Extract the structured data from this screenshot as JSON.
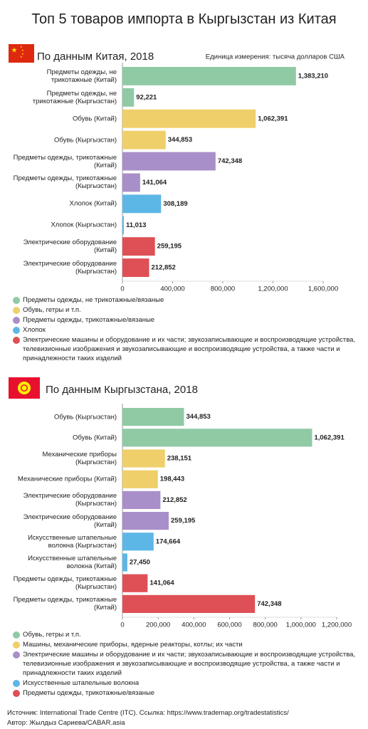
{
  "title": "Топ 5 товаров импорта в Кыргызстан из Китая",
  "source": "Источник: International Trade Centre (ITC). Ссылка: https://www.trademap.org/tradestatistics/",
  "author": "Автор: Жылдыз Сариева/CABAR.asia",
  "chart_data": [
    {
      "type": "bar",
      "orientation": "horizontal",
      "title": "По данным Китая, 2018",
      "subtitle": "Единица измерения: тысяча долларов США",
      "categories": [
        "Предметы одежды, не трикотажные (Китай)",
        "Предметы одежды, не трикотажные (Кыргызстан)",
        "Обувь (Китай)",
        "Обувь (Кыргызстан)",
        "Предметы одежды, трикотажные (Китай)",
        "Предметы одежды, трикотажные (Кыргызстан)",
        "Хлопок (Китай)",
        "Хлопок (Кыргызстан)",
        "Электрические оборудование (Китай)",
        "Электрические оборудование (Кыргызстан)"
      ],
      "values": [
        1383210,
        92221,
        1062391,
        344853,
        742348,
        141064,
        308189,
        11013,
        259195,
        212852
      ],
      "value_labels": [
        "1,383,210",
        "92,221",
        "1,062,391",
        "344,853",
        "742,348",
        "141,064",
        "308,189",
        "11,013",
        "259,195",
        "212,852"
      ],
      "colors": [
        "#8fcaa5",
        "#8fcaa5",
        "#efcf6a",
        "#efcf6a",
        "#a98fc9",
        "#a98fc9",
        "#5db7e6",
        "#5db7e6",
        "#de5055",
        "#de5055"
      ],
      "xlim": [
        0,
        1600000
      ],
      "xticks": [
        0,
        {
          "value": 400000,
          "label": "400,000"
        },
        {
          "value": 800000,
          "label": "800,000"
        },
        {
          "value": 1200000,
          "label": "1,200,000"
        },
        {
          "value": 1600000,
          "label": "1,600,000"
        }
      ],
      "legend": [
        {
          "name": "Предметы одежды, не трикотажные/вязаные",
          "color": "#8fcaa5"
        },
        {
          "name": "Обувь, гетры и т.п.",
          "color": "#efcf6a"
        },
        {
          "name": "Предметы одежды, трикотажные/вязаные",
          "color": "#a98fc9"
        },
        {
          "name": "Хлопок",
          "color": "#5db7e6"
        },
        {
          "name": "Электрические машины и оборудование и их части; звукозаписывающие и воспроизводящие устройства, телевизионные изображения и звукозаписывающие и воспроизводящие устройства, а также части и принадлежности таких изделий",
          "color": "#de5055"
        }
      ]
    },
    {
      "type": "bar",
      "orientation": "horizontal",
      "title": "По данным Кыргызстана, 2018",
      "categories": [
        "Обувь (Кыргызстан)",
        "Обувь (Китай)",
        "Механические приборы (Кыргызстан)",
        "Механические приборы (Китай)",
        "Электрические оборудование (Кыргызстан)",
        "Электрические оборудование (Китай)",
        "Искусственные штапельные волокна (Кыргызстан)",
        "Искусственные штапельные волокна (Китай)",
        "Предметы одежды, трикотажные (Кыргызстан)",
        "Предметы одежды, трикотажные (Китай)"
      ],
      "values": [
        344853,
        1062391,
        238151,
        198443,
        212852,
        259195,
        174664,
        27450,
        141064,
        742348
      ],
      "value_labels": [
        "344,853",
        "1,062,391",
        "238,151",
        "198,443",
        "212,852",
        "259,195",
        "174,664",
        "27,450",
        "141,064",
        "742,348"
      ],
      "colors": [
        "#8fcaa5",
        "#8fcaa5",
        "#efcf6a",
        "#efcf6a",
        "#a98fc9",
        "#a98fc9",
        "#5db7e6",
        "#5db7e6",
        "#de5055",
        "#de5055"
      ],
      "xlim": [
        0,
        1200000
      ],
      "xticks": [
        0,
        {
          "value": 200000,
          "label": "200,000"
        },
        {
          "value": 400000,
          "label": "400,000"
        },
        {
          "value": 600000,
          "label": "600,000"
        },
        {
          "value": 800000,
          "label": "800,000"
        },
        {
          "value": 1000000,
          "label": "1,000,000"
        },
        {
          "value": 1200000,
          "label": "1,200,000"
        }
      ],
      "legend": [
        {
          "name": "Обувь, гетры и т.п.",
          "color": "#8fcaa5"
        },
        {
          "name": "Машины, механические приборы, ядерные реакторы, котлы; их части",
          "color": "#efcf6a"
        },
        {
          "name": "Электрические машины и оборудование и их части; звукозаписывающие и воспроизводящие устройства, телевизионные изображения и звукозаписывающие и воспроизводящие устройства, а также части и принадлежности таких изделий",
          "color": "#a98fc9"
        },
        {
          "name": "Искусственные штапельные волокна",
          "color": "#5db7e6"
        },
        {
          "name": "Предметы одежды, трикотажные/вязаные",
          "color": "#de5055"
        }
      ]
    }
  ]
}
